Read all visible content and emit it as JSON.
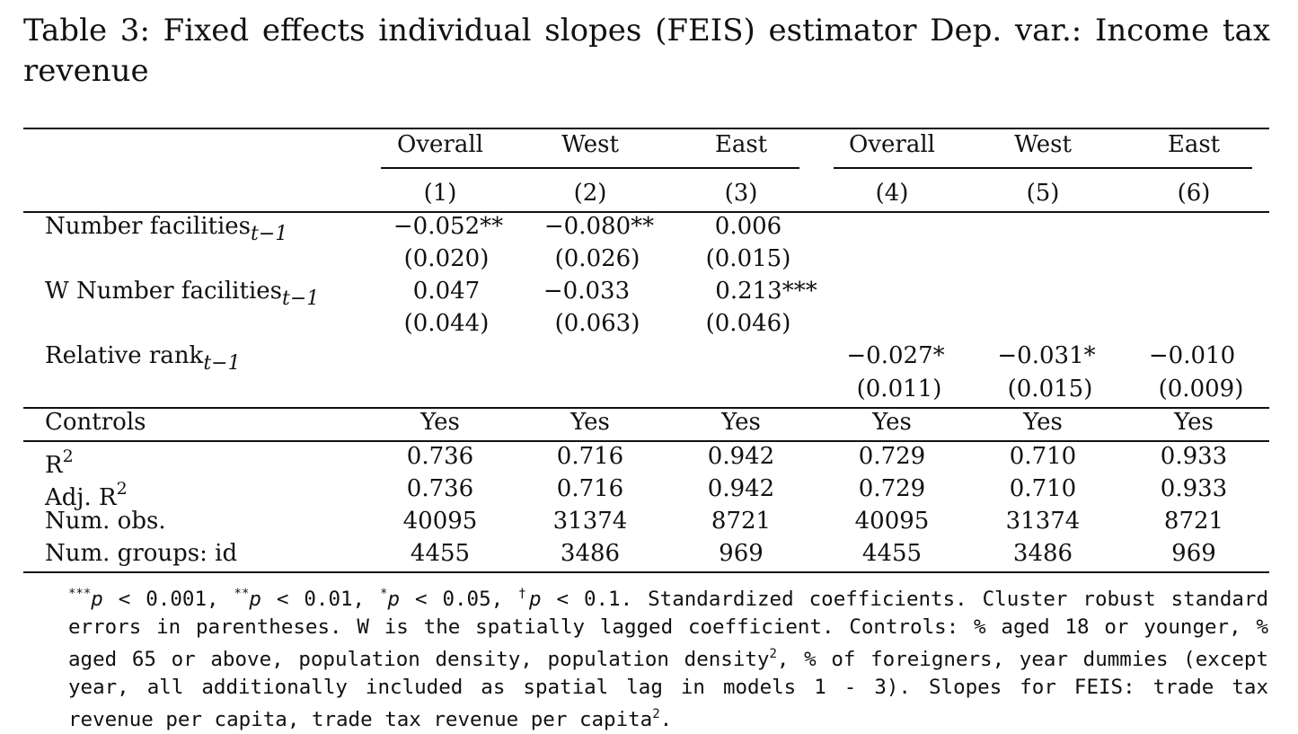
{
  "caption": {
    "label": "Table 3:",
    "text": "Fixed effects individual slopes (FEIS) estimator Dep.  var.: Income tax revenue"
  },
  "header": {
    "groups": [
      "Overall",
      "West",
      "East",
      "Overall",
      "West",
      "East"
    ],
    "numbers": [
      "(1)",
      "(2)",
      "(3)",
      "(4)",
      "(5)",
      "(6)"
    ]
  },
  "rows": {
    "facilities": {
      "label": "Number facilities",
      "subscript": "t−1",
      "coefs": [
        "−0.052**",
        "−0.080**",
        "0.006"
      ],
      "ses": [
        "(0.020)",
        "(0.026)",
        "(0.015)"
      ]
    },
    "w_facilities": {
      "label": "W Number facilities",
      "subscript": "t−1",
      "coefs": [
        "0.047",
        "−0.033",
        "0.213***"
      ],
      "ses": [
        "(0.044)",
        "(0.063)",
        "(0.046)"
      ]
    },
    "rank": {
      "label": "Relative rank",
      "subscript": "t−1",
      "coefs": [
        "−0.027*",
        "−0.031*",
        "−0.010"
      ],
      "ses": [
        "(0.011)",
        "(0.015)",
        "(0.009)"
      ]
    }
  },
  "stats": {
    "controls": {
      "label": "Controls",
      "values": [
        "Yes",
        "Yes",
        "Yes",
        "Yes",
        "Yes",
        "Yes"
      ]
    },
    "r2": {
      "label": "R",
      "sup": "2",
      "values": [
        "0.736",
        "0.716",
        "0.942",
        "0.729",
        "0.710",
        "0.933"
      ]
    },
    "adj_r2": {
      "label": "Adj. R",
      "sup": "2",
      "values": [
        "0.736",
        "0.716",
        "0.942",
        "0.729",
        "0.710",
        "0.933"
      ]
    },
    "obs": {
      "label": "Num. obs.",
      "values": [
        "40095",
        "31374",
        "8721",
        "40095",
        "31374",
        "8721"
      ]
    },
    "groups": {
      "label": "Num. groups: id",
      "values": [
        "4455",
        "3486",
        "969",
        "4455",
        "3486",
        "969"
      ]
    }
  },
  "notes": {
    "s1": "***",
    "p1": "p",
    "t1": " < 0.001, ",
    "s2": "**",
    "p2": "p",
    "t2": " < 0.01, ",
    "s3": "*",
    "p3": "p",
    "t3": " < 0.05, ",
    "s4": "†",
    "p4": "p",
    "t4": " < 0.1. Standardized coefficients. Cluster robust standard errors in parentheses. W is the spatially lagged coefficient. Controls: % aged 18 or younger, % aged 65 or above, population density, population density",
    "sq1": "2",
    "t5": ", % of foreigners, year dummies (except year, all additionally included as spatial lag in models 1 - 3). Slopes for FEIS: trade tax revenue per capita, trade tax revenue per capita",
    "sq2": "2",
    "t6": "."
  }
}
